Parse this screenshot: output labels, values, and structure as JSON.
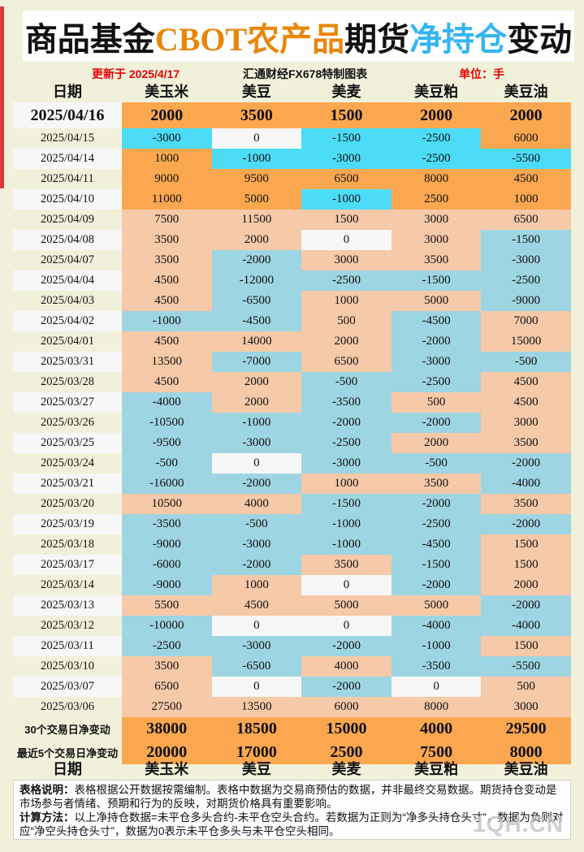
{
  "title": {
    "part1": "商品基金",
    "part2": "CBOT农产品",
    "part3": "期货",
    "part4": "净持仓",
    "part5": "变动"
  },
  "meta": {
    "updated": "更新于 2025/4/17",
    "source": "汇通财经FX678特制图表",
    "unit": "单位：手"
  },
  "chart_data": {
    "type": "table",
    "title": "商品基金CBOT农产品期货净持仓变动",
    "unit": "手",
    "columns": [
      "日期",
      "美玉米",
      "美豆",
      "美麦",
      "美豆粕",
      "美豆油"
    ],
    "legend_colors": {
      "strong_up": "#FAA750",
      "strong_down": "#4DDCF8",
      "up": "#F6C9A8",
      "down": "#9ED5E2",
      "zero": "#F7F7F7"
    },
    "rows": [
      {
        "date": "2025/04/16",
        "big": true,
        "values": [
          "2000",
          "3500",
          "1500",
          "2000",
          "2000"
        ],
        "styles": [
          "strong-up",
          "strong-up",
          "strong-up",
          "strong-up",
          "strong-up"
        ]
      },
      {
        "date": "2025/04/15",
        "values": [
          "-3000",
          "0",
          "-1500",
          "-2500",
          "6000"
        ],
        "styles": [
          "strong-down",
          "zero",
          "strong-down",
          "strong-down",
          "strong-up"
        ]
      },
      {
        "date": "2025/04/14",
        "values": [
          "1000",
          "-1000",
          "-3000",
          "-2500",
          "-5500"
        ],
        "styles": [
          "strong-up",
          "strong-down",
          "strong-down",
          "strong-down",
          "strong-down"
        ]
      },
      {
        "date": "2025/04/11",
        "values": [
          "9000",
          "9500",
          "6500",
          "8000",
          "4500"
        ],
        "styles": [
          "strong-up",
          "strong-up",
          "strong-up",
          "strong-up",
          "strong-up"
        ]
      },
      {
        "date": "2025/04/10",
        "values": [
          "11000",
          "5000",
          "-1000",
          "2500",
          "1000"
        ],
        "styles": [
          "strong-up",
          "strong-up",
          "strong-down",
          "strong-up",
          "strong-up"
        ]
      },
      {
        "date": "2025/04/09",
        "values": [
          "7500",
          "11500",
          "1500",
          "3000",
          "6500"
        ],
        "styles": [
          "up",
          "up",
          "up",
          "up",
          "up"
        ]
      },
      {
        "date": "2025/04/08",
        "values": [
          "3500",
          "2000",
          "0",
          "3000",
          "-1500"
        ],
        "styles": [
          "up",
          "up",
          "zero",
          "up",
          "down"
        ]
      },
      {
        "date": "2025/04/07",
        "values": [
          "3500",
          "-2000",
          "3000",
          "3500",
          "-3000"
        ],
        "styles": [
          "up",
          "down",
          "up",
          "up",
          "down"
        ]
      },
      {
        "date": "2025/04/04",
        "values": [
          "4500",
          "-12000",
          "-2500",
          "-1500",
          "-2500"
        ],
        "styles": [
          "up",
          "down",
          "down",
          "down",
          "down"
        ]
      },
      {
        "date": "2025/04/03",
        "values": [
          "4500",
          "-6500",
          "1000",
          "5000",
          "-9000"
        ],
        "styles": [
          "up",
          "down",
          "up",
          "up",
          "down"
        ]
      },
      {
        "date": "2025/04/02",
        "values": [
          "-1000",
          "-4500",
          "500",
          "-4500",
          "7000"
        ],
        "styles": [
          "down",
          "down",
          "up",
          "down",
          "up"
        ]
      },
      {
        "date": "2025/04/01",
        "values": [
          "4500",
          "14000",
          "2000",
          "-2000",
          "15000"
        ],
        "styles": [
          "up",
          "up",
          "up",
          "down",
          "up"
        ]
      },
      {
        "date": "2025/03/31",
        "values": [
          "13500",
          "-7000",
          "6500",
          "-3000",
          "-500"
        ],
        "styles": [
          "up",
          "down",
          "up",
          "down",
          "down"
        ]
      },
      {
        "date": "2025/03/28",
        "values": [
          "4500",
          "2000",
          "-500",
          "-2500",
          "4500"
        ],
        "styles": [
          "up",
          "up",
          "down",
          "down",
          "up"
        ]
      },
      {
        "date": "2025/03/27",
        "values": [
          "-4000",
          "2000",
          "-3500",
          "500",
          "4500"
        ],
        "styles": [
          "down",
          "up",
          "down",
          "up",
          "up"
        ]
      },
      {
        "date": "2025/03/26",
        "values": [
          "-10500",
          "-1000",
          "-2000",
          "-2000",
          "3000"
        ],
        "styles": [
          "down",
          "down",
          "down",
          "down",
          "up"
        ]
      },
      {
        "date": "2025/03/25",
        "values": [
          "-9500",
          "-3000",
          "-2500",
          "2000",
          "3500"
        ],
        "styles": [
          "down",
          "down",
          "down",
          "up",
          "up"
        ]
      },
      {
        "date": "2025/03/24",
        "values": [
          "-500",
          "0",
          "-3000",
          "-500",
          "-2000"
        ],
        "styles": [
          "down",
          "zero",
          "down",
          "down",
          "down"
        ]
      },
      {
        "date": "2025/03/21",
        "values": [
          "-16000",
          "-2000",
          "1000",
          "3500",
          "-4000"
        ],
        "styles": [
          "down",
          "down",
          "up",
          "up",
          "down"
        ]
      },
      {
        "date": "2025/03/20",
        "values": [
          "10500",
          "4000",
          "-1500",
          "-2000",
          "3500"
        ],
        "styles": [
          "up",
          "up",
          "down",
          "down",
          "up"
        ]
      },
      {
        "date": "2025/03/19",
        "values": [
          "-3500",
          "-500",
          "-1000",
          "-2500",
          "-2000"
        ],
        "styles": [
          "down",
          "down",
          "down",
          "down",
          "down"
        ]
      },
      {
        "date": "2025/03/18",
        "values": [
          "-9000",
          "-3000",
          "-1000",
          "-4500",
          "1500"
        ],
        "styles": [
          "down",
          "down",
          "down",
          "down",
          "up"
        ]
      },
      {
        "date": "2025/03/17",
        "values": [
          "-6000",
          "-2000",
          "3500",
          "-1500",
          "1500"
        ],
        "styles": [
          "down",
          "down",
          "up",
          "down",
          "up"
        ]
      },
      {
        "date": "2025/03/14",
        "values": [
          "-9000",
          "1000",
          "0",
          "-2000",
          "2000"
        ],
        "styles": [
          "down",
          "up",
          "zero",
          "down",
          "up"
        ]
      },
      {
        "date": "2025/03/13",
        "values": [
          "5500",
          "4500",
          "5000",
          "5000",
          "-2000"
        ],
        "styles": [
          "up",
          "up",
          "up",
          "up",
          "down"
        ]
      },
      {
        "date": "2025/03/12",
        "values": [
          "-10000",
          "0",
          "0",
          "-4000",
          "-4000"
        ],
        "styles": [
          "down",
          "zero",
          "zero",
          "down",
          "down"
        ]
      },
      {
        "date": "2025/03/11",
        "values": [
          "-2500",
          "-3000",
          "-2000",
          "-1000",
          "1500"
        ],
        "styles": [
          "down",
          "down",
          "down",
          "down",
          "up"
        ]
      },
      {
        "date": "2025/03/10",
        "values": [
          "3500",
          "-6500",
          "4000",
          "-3500",
          "-5500"
        ],
        "styles": [
          "up",
          "down",
          "up",
          "down",
          "down"
        ]
      },
      {
        "date": "2025/03/07",
        "values": [
          "6500",
          "0",
          "-2000",
          "0",
          "500"
        ],
        "styles": [
          "up",
          "zero",
          "down",
          "zero",
          "up"
        ]
      },
      {
        "date": "2025/03/06",
        "values": [
          "27500",
          "13500",
          "6000",
          "8000",
          "3000"
        ],
        "styles": [
          "up",
          "up",
          "up",
          "up",
          "up"
        ]
      }
    ],
    "summary": [
      {
        "label": "30个交易日净变动",
        "values": [
          "38000",
          "18500",
          "15000",
          "4000",
          "29500"
        ]
      },
      {
        "label": "最近5个交易日净变动",
        "values": [
          "20000",
          "17000",
          "2500",
          "7500",
          "8000"
        ]
      }
    ]
  },
  "notes": [
    {
      "label": "表格说明：",
      "text": "表格根据公开数据按需编制。表格中数据为交易商预估的数据，并非最终交易数据。期货持仓变动是市场参与者情绪、预期和行为的反映，对期货价格具有重要影响。"
    },
    {
      "label": "计算方法：",
      "text": "以上净持仓数据=未平仓多头合约-未平仓空头合约。若数据为正则为“净多头持仓头寸”，数据为负则对应“净空头持仓头寸”，数据为0表示未平仓多头与未平仓空头相同。"
    }
  ],
  "watermark": "1QH.CN",
  "colors": {
    "background": "#F1F1DB",
    "red_stripe": "#DC3B3B",
    "accent_red": "#E60000",
    "title_orange": "#E8860B",
    "title_blue": "#35B5F2"
  }
}
